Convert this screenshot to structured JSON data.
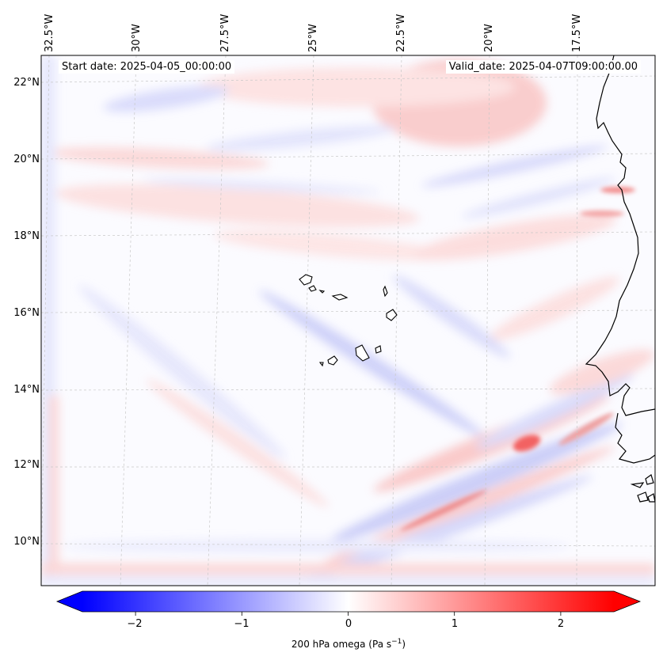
{
  "map": {
    "start_date": "Start date: 2025-04-05_00:00:00",
    "valid_date": "Valid_date: 2025-04-07T09:00:00.00",
    "lon_labels": [
      "32.5°W",
      "30°W",
      "27.5°W",
      "25°W",
      "22.5°W",
      "20°W",
      "17.5°W"
    ],
    "lat_labels": [
      "22°N",
      "20°N",
      "18°N",
      "16°N",
      "14°N",
      "12°N",
      "10°N"
    ],
    "field": "200 hPa omega"
  },
  "colorbar": {
    "label": "200 hPa omega (Pa s",
    "label_exp": "−1",
    "label_close": ")",
    "ticks": [
      "−2",
      "−1",
      "0",
      "1",
      "2"
    ],
    "tick_values": [
      -2,
      -1,
      0,
      1,
      2
    ],
    "range": [
      -2.5,
      2.5
    ],
    "colormap": "bwr",
    "colors": {
      "low": "#0000ff",
      "mid": "#ffffff",
      "high": "#ff0000"
    }
  }
}
